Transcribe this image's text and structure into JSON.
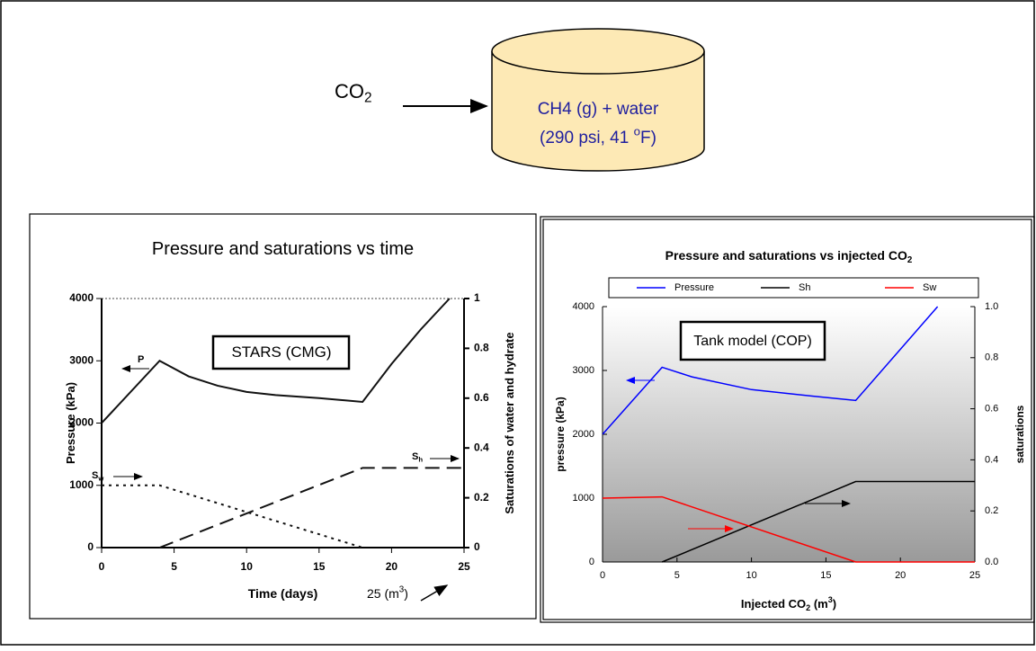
{
  "diagram": {
    "inlet": [
      {
        "text": "CO"
      },
      {
        "sub": "2"
      }
    ],
    "tank_line1": "CH4 (g) + water",
    "tank_line2": [
      {
        "text": "(290 psi, 41 "
      },
      {
        "sup": "o"
      },
      {
        "text": "F)"
      }
    ]
  },
  "chart_data": [
    {
      "type": "line",
      "title": [
        {
          "text": "Pressure and saturations vs time"
        }
      ],
      "xlabel": [
        {
          "text": "Time (days)"
        }
      ],
      "ylabel": [
        {
          "text": "Pressure (kPa)"
        }
      ],
      "y2label": [
        {
          "text": "Saturations of water and hydrate"
        }
      ],
      "xlim": [
        0,
        25
      ],
      "xticks": [
        0,
        5,
        10,
        15,
        20,
        25
      ],
      "ylim": [
        0,
        4000
      ],
      "yticks": [
        0,
        1000,
        2000,
        3000,
        4000
      ],
      "y2lim": [
        0,
        1
      ],
      "y2ticks": [
        0,
        0.2,
        0.4,
        0.6,
        0.8,
        1
      ],
      "annotations": [
        [
          {
            "text": "STARS (CMG)"
          }
        ],
        [
          {
            "text": "P"
          }
        ],
        [
          {
            "text": "S"
          },
          {
            "sub": "w"
          }
        ],
        [
          {
            "text": "S"
          },
          {
            "sub": "h"
          }
        ],
        [
          {
            "text": "25 (m"
          },
          {
            "sup": "3"
          },
          {
            "text": ")"
          }
        ]
      ],
      "series": [
        {
          "color": "#111111",
          "style": "solid",
          "x": [
            0,
            4,
            6,
            8,
            10,
            12,
            15,
            18,
            20,
            22,
            24
          ],
          "values": [
            2000,
            3000,
            2750,
            2600,
            2500,
            2450,
            2400,
            2340,
            2950,
            3500,
            4000
          ]
        },
        {
          "color": "#111111",
          "style": "dotted",
          "axis": "y2",
          "x": [
            0,
            4,
            18
          ],
          "values": [
            0.25,
            0.25,
            0
          ]
        },
        {
          "color": "#111111",
          "style": "dashed",
          "axis": "y2",
          "x": [
            4,
            18,
            25
          ],
          "values": [
            0,
            0.32,
            0.32
          ]
        }
      ]
    },
    {
      "type": "line",
      "title": [
        {
          "text": "Pressure and saturations vs injected CO"
        },
        {
          "sub": "2"
        }
      ],
      "xlabel": [
        {
          "text": "Injected CO"
        },
        {
          "sub": "2"
        },
        {
          "text": " (m"
        },
        {
          "sup": "3"
        },
        {
          "text": ")"
        }
      ],
      "ylabel": [
        {
          "text": "pressure (kPa)"
        }
      ],
      "y2label": [
        {
          "text": "saturations"
        }
      ],
      "xlim": [
        0,
        25
      ],
      "xticks": [
        0,
        5,
        10,
        15,
        20,
        25
      ],
      "ylim": [
        0,
        4000
      ],
      "yticks": [
        0,
        1000,
        2000,
        3000,
        4000
      ],
      "y2lim": [
        0,
        1
      ],
      "y2ticks": [
        {
          "value": 0,
          "label": "0.0"
        },
        {
          "value": 0.2,
          "label": "0.2"
        },
        {
          "value": 0.4,
          "label": "0.4"
        },
        {
          "value": 0.6,
          "label": "0.6"
        },
        {
          "value": 0.8,
          "label": "0.8"
        },
        {
          "value": 1,
          "label": "1.0"
        }
      ],
      "annotations": [
        [
          {
            "text": "Tank model (COP)"
          }
        ]
      ],
      "legend": "top",
      "series": [
        {
          "name": "Pressure",
          "color": "#0000ff",
          "style": "solid",
          "x": [
            0,
            4,
            6,
            10,
            14,
            17,
            22.5
          ],
          "values": [
            2000,
            3050,
            2900,
            2700,
            2600,
            2530,
            4000
          ]
        },
        {
          "name": "Sh",
          "color": "#000000",
          "style": "solid",
          "axis": "y2",
          "x": [
            4,
            17,
            25
          ],
          "values": [
            0,
            0.315,
            0.315
          ]
        },
        {
          "name": "Sw",
          "color": "#ff0000",
          "style": "solid",
          "axis": "y2",
          "x": [
            0,
            4,
            17,
            25
          ],
          "values": [
            0.25,
            0.255,
            0,
            0
          ]
        }
      ]
    }
  ]
}
